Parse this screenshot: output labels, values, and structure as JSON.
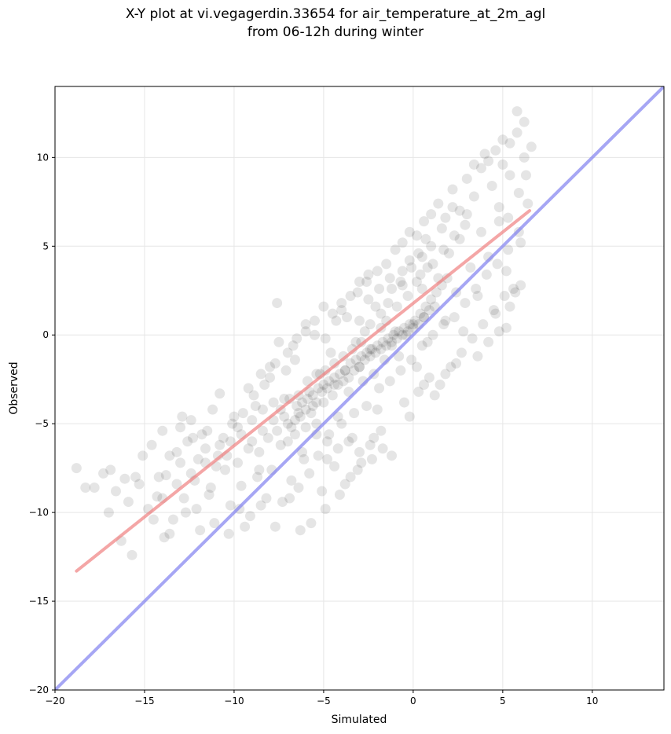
{
  "chart_data": {
    "type": "scatter",
    "title_line1": "X-Y plot at vi.vegagerdin.33654 for air_temperature_at_2m_agl",
    "title_line2": "from 06-12h during winter",
    "xlabel": "Simulated",
    "ylabel": "Observed",
    "xlim": [
      -20,
      14
    ],
    "ylim": [
      -20,
      14
    ],
    "xticks": [
      -20,
      -15,
      -10,
      -5,
      0,
      5,
      10
    ],
    "yticks": [
      -20,
      -15,
      -10,
      -5,
      0,
      5,
      10
    ],
    "xtick_labels": [
      "−20",
      "−15",
      "−10",
      "−5",
      "0",
      "5",
      "10"
    ],
    "ytick_labels": [
      "−20",
      "−15",
      "−10",
      "−5",
      "0",
      "5",
      "10"
    ],
    "grid": true,
    "point_color": "#000000",
    "fit_line_color": "#f08080",
    "identity_line_color": "#8080f0",
    "identity_line": {
      "x": [
        -20,
        14
      ],
      "y": [
        -20,
        14
      ]
    },
    "fit_line": {
      "x": [
        -18.8,
        6.5
      ],
      "y": [
        -13.3,
        7.0
      ]
    },
    "points": [
      [
        -18.8,
        -7.5
      ],
      [
        -18.3,
        -8.6
      ],
      [
        -17.8,
        -8.6
      ],
      [
        -17.3,
        -7.8
      ],
      [
        -17.0,
        -10.0
      ],
      [
        -16.6,
        -8.8
      ],
      [
        -16.3,
        -11.6
      ],
      [
        -16.1,
        -8.1
      ],
      [
        -15.9,
        -9.4
      ],
      [
        -15.7,
        -12.4
      ],
      [
        -15.5,
        -8.0
      ],
      [
        -15.1,
        -6.8
      ],
      [
        -14.8,
        -9.8
      ],
      [
        -14.6,
        -6.2
      ],
      [
        -14.3,
        -9.1
      ],
      [
        -14.0,
        -5.4
      ],
      [
        -13.8,
        -7.9
      ],
      [
        -13.6,
        -11.2
      ],
      [
        -13.4,
        -10.4
      ],
      [
        -13.2,
        -6.6
      ],
      [
        -13.0,
        -5.2
      ],
      [
        -12.8,
        -9.2
      ],
      [
        -12.6,
        -6.0
      ],
      [
        -12.4,
        -4.8
      ],
      [
        -12.2,
        -8.2
      ],
      [
        -12.0,
        -7.0
      ],
      [
        -11.8,
        -5.6
      ],
      [
        -11.6,
        -6.4
      ],
      [
        -11.4,
        -9.0
      ],
      [
        -11.2,
        -4.2
      ],
      [
        -11.0,
        -7.4
      ],
      [
        -10.8,
        -3.3
      ],
      [
        -10.6,
        -5.8
      ],
      [
        -10.4,
        -6.8
      ],
      [
        -10.2,
        -9.6
      ],
      [
        -10.0,
        -4.6
      ],
      [
        -9.8,
        -5.2
      ],
      [
        -9.6,
        -8.5
      ],
      [
        -9.4,
        -10.8
      ],
      [
        -9.2,
        -3.0
      ],
      [
        -9.0,
        -6.0
      ],
      [
        -8.8,
        -4.0
      ],
      [
        -8.6,
        -7.6
      ],
      [
        -8.4,
        -5.4
      ],
      [
        -8.2,
        -9.2
      ],
      [
        -8.0,
        -2.4
      ],
      [
        -7.8,
        -4.8
      ],
      [
        -7.6,
        1.8
      ],
      [
        -7.4,
        -6.2
      ],
      [
        -7.2,
        -3.6
      ],
      [
        -7.0,
        -5.0
      ],
      [
        -6.8,
        -8.2
      ],
      [
        -6.6,
        -1.4
      ],
      [
        -6.4,
        -4.4
      ],
      [
        -6.2,
        -6.6
      ],
      [
        -6.0,
        0.6
      ],
      [
        -5.8,
        -3.2
      ],
      [
        -5.6,
        -4.0
      ],
      [
        -5.4,
        -5.6
      ],
      [
        -5.2,
        -2.2
      ],
      [
        -5.0,
        -3.8
      ],
      [
        -4.8,
        -7.0
      ],
      [
        -4.6,
        -1.0
      ],
      [
        -4.4,
        -2.8
      ],
      [
        -4.2,
        -4.6
      ],
      [
        -4.0,
        1.4
      ],
      [
        -3.8,
        -2.0
      ],
      [
        -3.6,
        -3.2
      ],
      [
        -3.4,
        -5.8
      ],
      [
        -3.2,
        -0.4
      ],
      [
        -3.0,
        -1.8
      ],
      [
        -2.8,
        -2.6
      ],
      [
        -2.6,
        3.0
      ],
      [
        -2.4,
        -0.8
      ],
      [
        -2.2,
        -2.2
      ],
      [
        -2.0,
        -4.2
      ],
      [
        -1.8,
        0.4
      ],
      [
        -1.6,
        -1.4
      ],
      [
        -1.4,
        1.8
      ],
      [
        -1.2,
        -0.6
      ],
      [
        -1.0,
        0.2
      ],
      [
        -0.8,
        -1.2
      ],
      [
        -0.6,
        2.8
      ],
      [
        -0.4,
        0.0
      ],
      [
        -0.2,
        4.2
      ],
      [
        0.0,
        0.6
      ],
      [
        0.2,
        -1.8
      ],
      [
        0.4,
        3.4
      ],
      [
        0.6,
        1.0
      ],
      [
        0.8,
        -0.4
      ],
      [
        1.0,
        5.0
      ],
      [
        1.2,
        1.6
      ],
      [
        1.4,
        3.2
      ],
      [
        1.6,
        6.0
      ],
      [
        1.8,
        0.8
      ],
      [
        2.0,
        4.6
      ],
      [
        2.2,
        7.2
      ],
      [
        2.4,
        2.4
      ],
      [
        2.6,
        5.4
      ],
      [
        2.8,
        0.2
      ],
      [
        3.0,
        6.8
      ],
      [
        3.2,
        3.8
      ],
      [
        3.4,
        9.6
      ],
      [
        3.6,
        2.2
      ],
      [
        3.8,
        5.8
      ],
      [
        4.0,
        10.2
      ],
      [
        4.2,
        4.4
      ],
      [
        4.4,
        8.4
      ],
      [
        4.6,
        1.2
      ],
      [
        4.8,
        6.4
      ],
      [
        5.0,
        11.0
      ],
      [
        5.2,
        3.6
      ],
      [
        5.4,
        9.0
      ],
      [
        5.6,
        2.6
      ],
      [
        5.8,
        12.6
      ],
      [
        6.0,
        5.2
      ],
      [
        6.2,
        10.0
      ],
      [
        6.4,
        7.4
      ],
      [
        6.6,
        10.6
      ],
      [
        5.2,
        0.4
      ],
      [
        -6.8,
        -5.2
      ],
      [
        -6.5,
        -4.0
      ],
      [
        -6.2,
        -3.8
      ],
      [
        -5.9,
        -3.6
      ],
      [
        -5.6,
        -3.4
      ],
      [
        -5.3,
        -3.0
      ],
      [
        -5.0,
        -2.8
      ],
      [
        -4.7,
        -2.6
      ],
      [
        -4.4,
        -2.4
      ],
      [
        -4.1,
        -2.2
      ],
      [
        -3.8,
        -2.0
      ],
      [
        -3.5,
        -1.6
      ],
      [
        -3.2,
        -1.4
      ],
      [
        -2.9,
        -1.2
      ],
      [
        -2.6,
        -1.0
      ],
      [
        -2.3,
        -0.8
      ],
      [
        -2.0,
        -0.6
      ],
      [
        -1.7,
        -0.4
      ],
      [
        -1.4,
        -0.2
      ],
      [
        -1.1,
        0.0
      ],
      [
        -0.8,
        0.2
      ],
      [
        -0.5,
        0.4
      ],
      [
        -0.2,
        0.6
      ],
      [
        0.1,
        0.8
      ],
      [
        0.4,
        1.2
      ],
      [
        0.7,
        1.6
      ],
      [
        1.0,
        2.0
      ],
      [
        1.3,
        2.4
      ],
      [
        1.6,
        2.8
      ],
      [
        1.9,
        3.2
      ],
      [
        -7.0,
        -6.0
      ],
      [
        -6.6,
        -5.6
      ],
      [
        -6.3,
        -4.6
      ],
      [
        -6.0,
        -4.2
      ],
      [
        -5.7,
        -4.4
      ],
      [
        -5.4,
        -3.8
      ],
      [
        -5.1,
        -3.2
      ],
      [
        -4.8,
        -3.0
      ],
      [
        -4.5,
        -3.4
      ],
      [
        -4.2,
        -2.8
      ],
      [
        -3.9,
        -2.6
      ],
      [
        -3.6,
        -2.4
      ],
      [
        -3.3,
        -2.0
      ],
      [
        -3.0,
        -1.8
      ],
      [
        -2.7,
        -1.4
      ],
      [
        -2.4,
        -1.2
      ],
      [
        -2.1,
        -1.0
      ],
      [
        -1.8,
        -0.8
      ],
      [
        -1.5,
        -0.6
      ],
      [
        -1.2,
        -0.4
      ],
      [
        -0.9,
        -0.2
      ],
      [
        -0.6,
        0.0
      ],
      [
        -0.3,
        0.2
      ],
      [
        0.0,
        0.4
      ],
      [
        0.3,
        0.6
      ],
      [
        0.6,
        1.0
      ],
      [
        0.9,
        1.4
      ],
      [
        0.8,
        3.8
      ],
      [
        0.5,
        2.6
      ],
      [
        0.2,
        3.0
      ],
      [
        -0.3,
        2.2
      ],
      [
        -0.6,
        3.6
      ],
      [
        -0.9,
        1.6
      ],
      [
        -1.2,
        2.6
      ],
      [
        -1.5,
        0.8
      ],
      [
        -1.8,
        1.2
      ],
      [
        -2.1,
        1.6
      ],
      [
        -2.4,
        0.6
      ],
      [
        -2.7,
        0.2
      ],
      [
        -3.0,
        0.8
      ],
      [
        -10.5,
        -7.6
      ],
      [
        -9.8,
        -7.2
      ],
      [
        -9.2,
        -6.4
      ],
      [
        -8.6,
        -6.6
      ],
      [
        -8.1,
        -5.8
      ],
      [
        -7.6,
        -5.4
      ],
      [
        -11.3,
        -8.6
      ],
      [
        -12.1,
        -9.8
      ],
      [
        -13.0,
        -7.2
      ],
      [
        -14.2,
        -8.0
      ],
      [
        -8.9,
        -3.4
      ],
      [
        -8.3,
        -2.8
      ],
      [
        -7.7,
        -1.6
      ],
      [
        -7.1,
        -2.0
      ],
      [
        -6.7,
        -0.6
      ],
      [
        -5.5,
        0.0
      ],
      [
        -4.9,
        -0.2
      ],
      [
        -4.3,
        0.8
      ],
      [
        -3.7,
        1.0
      ],
      [
        -3.1,
        2.4
      ],
      [
        -2.5,
        2.0
      ],
      [
        -1.9,
        2.6
      ],
      [
        -1.3,
        3.2
      ],
      [
        -0.7,
        3.0
      ],
      [
        -0.1,
        3.8
      ],
      [
        0.5,
        4.4
      ],
      [
        1.1,
        4.0
      ],
      [
        1.7,
        4.8
      ],
      [
        2.3,
        5.6
      ],
      [
        2.9,
        6.2
      ],
      [
        -6.1,
        -7.0
      ],
      [
        -5.3,
        -6.8
      ],
      [
        -4.7,
        -5.6
      ],
      [
        -4.0,
        -5.0
      ],
      [
        -3.3,
        -4.4
      ],
      [
        -2.6,
        -4.0
      ],
      [
        -1.9,
        -3.0
      ],
      [
        -1.3,
        -2.6
      ],
      [
        -0.7,
        -2.0
      ],
      [
        -0.1,
        -1.4
      ],
      [
        0.5,
        -0.6
      ],
      [
        1.1,
        0.0
      ],
      [
        1.7,
        0.6
      ],
      [
        2.3,
        1.0
      ],
      [
        2.9,
        1.8
      ],
      [
        3.5,
        2.6
      ],
      [
        4.1,
        3.4
      ],
      [
        4.7,
        4.0
      ],
      [
        5.3,
        4.8
      ],
      [
        5.9,
        5.8
      ],
      [
        -9.5,
        -4.4
      ],
      [
        -10.1,
        -5.0
      ],
      [
        -10.8,
        -6.2
      ],
      [
        -11.5,
        -5.4
      ],
      [
        -12.3,
        -5.8
      ],
      [
        -12.9,
        -4.6
      ],
      [
        -13.6,
        -6.8
      ],
      [
        -8.7,
        -8.0
      ],
      [
        -7.9,
        -7.6
      ],
      [
        -7.3,
        -9.4
      ],
      [
        -6.4,
        -8.6
      ],
      [
        -5.8,
        -7.8
      ],
      [
        -5.1,
        -8.8
      ],
      [
        -4.4,
        -7.4
      ],
      [
        -3.8,
        -8.4
      ],
      [
        -3.1,
        -7.6
      ],
      [
        -2.4,
        -6.2
      ],
      [
        -1.8,
        -5.4
      ],
      [
        -1.2,
        -6.8
      ],
      [
        -0.5,
        -3.8
      ],
      [
        0.3,
        -3.2
      ],
      [
        0.9,
        -2.4
      ],
      [
        1.5,
        -2.8
      ],
      [
        2.1,
        -1.8
      ],
      [
        2.7,
        -1.0
      ],
      [
        3.3,
        -0.2
      ],
      [
        3.9,
        0.6
      ],
      [
        4.5,
        1.4
      ],
      [
        5.1,
        2.2
      ],
      [
        5.7,
        2.4
      ],
      [
        -16.9,
        -7.6
      ],
      [
        -15.3,
        -8.4
      ],
      [
        -14.5,
        -10.4
      ],
      [
        -13.9,
        -11.4
      ],
      [
        -12.7,
        -10.0
      ],
      [
        -11.9,
        -11.0
      ],
      [
        -11.1,
        -10.6
      ],
      [
        -10.3,
        -11.2
      ],
      [
        -9.7,
        -9.8
      ],
      [
        -9.1,
        -10.2
      ],
      [
        -8.5,
        -9.6
      ],
      [
        -7.7,
        -10.8
      ],
      [
        -6.9,
        -9.2
      ],
      [
        -6.3,
        -11.0
      ],
      [
        -5.7,
        -10.6
      ],
      [
        -4.9,
        -9.8
      ],
      [
        -4.1,
        -9.0
      ],
      [
        -3.5,
        -8.0
      ],
      [
        -2.9,
        -7.2
      ],
      [
        -2.2,
        -5.8
      ],
      [
        -7.4,
        -4.2
      ],
      [
        -6.9,
        -3.6
      ],
      [
        -6.4,
        -3.4
      ],
      [
        -5.9,
        -2.6
      ],
      [
        -5.4,
        -2.2
      ],
      [
        -4.9,
        -2.0
      ],
      [
        -4.4,
        -1.6
      ],
      [
        -3.9,
        -1.2
      ],
      [
        -3.4,
        -0.8
      ],
      [
        -2.9,
        -0.4
      ],
      [
        0.2,
        5.6
      ],
      [
        0.6,
        6.4
      ],
      [
        1.0,
        6.8
      ],
      [
        1.4,
        7.4
      ],
      [
        1.8,
        6.6
      ],
      [
        2.2,
        8.2
      ],
      [
        2.6,
        7.0
      ],
      [
        3.0,
        8.8
      ],
      [
        3.4,
        7.8
      ],
      [
        3.8,
        9.4
      ],
      [
        4.2,
        9.8
      ],
      [
        4.6,
        10.4
      ],
      [
        5.0,
        9.6
      ],
      [
        5.4,
        10.8
      ],
      [
        5.8,
        11.4
      ],
      [
        6.2,
        12.0
      ],
      [
        4.8,
        7.2
      ],
      [
        5.3,
        6.6
      ],
      [
        5.9,
        8.0
      ],
      [
        6.3,
        9.0
      ],
      [
        -1.0,
        4.8
      ],
      [
        -0.6,
        5.2
      ],
      [
        -0.2,
        5.8
      ],
      [
        0.3,
        4.6
      ],
      [
        0.7,
        5.4
      ],
      [
        -1.5,
        4.0
      ],
      [
        -2.0,
        3.6
      ],
      [
        -2.5,
        3.4
      ],
      [
        -3.0,
        3.0
      ],
      [
        -3.5,
        2.2
      ],
      [
        -4.0,
        1.8
      ],
      [
        -4.5,
        1.2
      ],
      [
        -5.0,
        1.6
      ],
      [
        -5.5,
        0.8
      ],
      [
        -6.0,
        0.2
      ],
      [
        -6.5,
        -0.2
      ],
      [
        -7.0,
        -1.0
      ],
      [
        -7.5,
        -0.4
      ],
      [
        -8.0,
        -1.8
      ],
      [
        -8.5,
        -2.2
      ],
      [
        3.6,
        -1.2
      ],
      [
        4.2,
        -0.4
      ],
      [
        4.8,
        0.2
      ],
      [
        5.4,
        1.6
      ],
      [
        6.0,
        2.8
      ],
      [
        2.4,
        -1.6
      ],
      [
        1.8,
        -2.2
      ],
      [
        1.2,
        -3.4
      ],
      [
        0.6,
        -2.8
      ],
      [
        -0.2,
        -4.6
      ],
      [
        -1.7,
        -6.4
      ],
      [
        -2.3,
        -7.0
      ],
      [
        -3.0,
        -6.6
      ],
      [
        -3.6,
        -6.0
      ],
      [
        -4.2,
        -6.4
      ],
      [
        -4.8,
        -6.0
      ],
      [
        -5.4,
        -5.0
      ],
      [
        -6.0,
        -5.2
      ],
      [
        -6.6,
        -4.8
      ],
      [
        -7.2,
        -4.6
      ],
      [
        -7.8,
        -3.8
      ],
      [
        -8.4,
        -4.2
      ],
      [
        -9.0,
        -4.8
      ],
      [
        -9.6,
        -5.6
      ],
      [
        -10.2,
        -6.0
      ],
      [
        -10.9,
        -6.8
      ],
      [
        -11.6,
        -7.2
      ],
      [
        -12.4,
        -7.8
      ],
      [
        -13.2,
        -8.4
      ],
      [
        -14.0,
        -9.2
      ]
    ]
  }
}
